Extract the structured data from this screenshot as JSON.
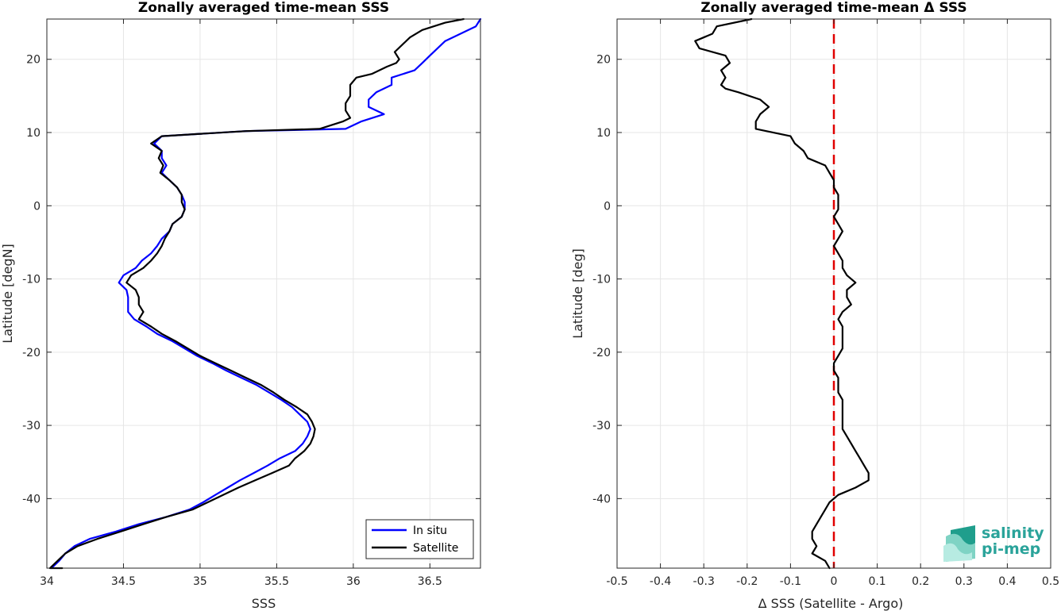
{
  "chart_data": [
    {
      "type": "line",
      "title": "Zonally averaged time-mean SSS",
      "xlabel": "SSS",
      "ylabel": "Latitude [degN]",
      "xlim": [
        34.0,
        36.83
      ],
      "ylim": [
        -49.5,
        25.5
      ],
      "xticks": [
        34,
        34.5,
        35,
        35.5,
        36,
        36.5
      ],
      "xtick_labels": [
        "34",
        "34.5",
        "35",
        "35.5",
        "36",
        "36.5"
      ],
      "yticks": [
        -40,
        -30,
        -20,
        -10,
        0,
        10,
        20
      ],
      "ytick_labels": [
        "-40",
        "-30",
        "-20",
        "-10",
        "0",
        "10",
        "20"
      ],
      "grid": true,
      "legend_position": "bottom-right",
      "series": [
        {
          "name": "In situ",
          "color": "#0000ff",
          "points": [
            [
              36.83,
              25.5
            ],
            [
              36.8,
              24.5
            ],
            [
              36.6,
              22.5
            ],
            [
              36.5,
              20.5
            ],
            [
              36.45,
              19.5
            ],
            [
              36.4,
              18.5
            ],
            [
              36.25,
              17.5
            ],
            [
              36.25,
              16.5
            ],
            [
              36.15,
              15.5
            ],
            [
              36.1,
              14.5
            ],
            [
              36.1,
              13.5
            ],
            [
              36.2,
              12.5
            ],
            [
              36.05,
              11.5
            ],
            [
              35.95,
              10.5
            ],
            [
              35.3,
              10.2
            ],
            [
              34.75,
              9.5
            ],
            [
              34.7,
              8.5
            ],
            [
              34.75,
              7.5
            ],
            [
              34.75,
              6.5
            ],
            [
              34.78,
              5.5
            ],
            [
              34.75,
              4.5
            ],
            [
              34.8,
              3.5
            ],
            [
              34.85,
              2.5
            ],
            [
              34.88,
              1.5
            ],
            [
              34.9,
              0.5
            ],
            [
              34.9,
              -0.5
            ],
            [
              34.88,
              -1.5
            ],
            [
              34.82,
              -2.5
            ],
            [
              34.8,
              -3.5
            ],
            [
              34.75,
              -4.5
            ],
            [
              34.72,
              -5.5
            ],
            [
              34.68,
              -6.5
            ],
            [
              34.62,
              -7.5
            ],
            [
              34.58,
              -8.5
            ],
            [
              34.5,
              -9.5
            ],
            [
              34.47,
              -10.5
            ],
            [
              34.52,
              -11.5
            ],
            [
              34.53,
              -12.5
            ],
            [
              34.53,
              -13.5
            ],
            [
              34.53,
              -14.5
            ],
            [
              34.57,
              -15.5
            ],
            [
              34.65,
              -16.5
            ],
            [
              34.72,
              -17.5
            ],
            [
              34.82,
              -18.5
            ],
            [
              34.9,
              -19.5
            ],
            [
              34.98,
              -20.5
            ],
            [
              35.08,
              -21.5
            ],
            [
              35.17,
              -22.5
            ],
            [
              35.27,
              -23.5
            ],
            [
              35.37,
              -24.5
            ],
            [
              35.45,
              -25.5
            ],
            [
              35.53,
              -26.5
            ],
            [
              35.6,
              -27.5
            ],
            [
              35.65,
              -28.5
            ],
            [
              35.7,
              -29.5
            ],
            [
              35.72,
              -30.5
            ],
            [
              35.7,
              -31.5
            ],
            [
              35.67,
              -32.5
            ],
            [
              35.62,
              -33.5
            ],
            [
              35.52,
              -34.5
            ],
            [
              35.44,
              -35.5
            ],
            [
              35.35,
              -36.5
            ],
            [
              35.26,
              -37.5
            ],
            [
              35.18,
              -38.5
            ],
            [
              35.1,
              -39.5
            ],
            [
              35.02,
              -40.5
            ],
            [
              34.93,
              -41.5
            ],
            [
              34.78,
              -42.5
            ],
            [
              34.6,
              -43.5
            ],
            [
              34.45,
              -44.5
            ],
            [
              34.28,
              -45.5
            ],
            [
              34.18,
              -46.5
            ],
            [
              34.12,
              -47.5
            ],
            [
              34.08,
              -48.5
            ],
            [
              34.03,
              -49.5
            ]
          ]
        },
        {
          "name": "Satellite",
          "color": "#000000",
          "points": [
            [
              36.72,
              25.5
            ],
            [
              36.6,
              25.0
            ],
            [
              36.45,
              24.0
            ],
            [
              36.37,
              23.0
            ],
            [
              36.32,
              22.0
            ],
            [
              36.27,
              21.0
            ],
            [
              36.3,
              20.0
            ],
            [
              36.28,
              19.5
            ],
            [
              36.22,
              19.0
            ],
            [
              36.12,
              18.0
            ],
            [
              36.02,
              17.5
            ],
            [
              35.98,
              16.5
            ],
            [
              35.98,
              15.0
            ],
            [
              35.95,
              14.0
            ],
            [
              35.95,
              13.0
            ],
            [
              35.98,
              12.0
            ],
            [
              35.93,
              11.5
            ],
            [
              35.78,
              10.5
            ],
            [
              35.3,
              10.2
            ],
            [
              34.75,
              9.5
            ],
            [
              34.68,
              8.5
            ],
            [
              34.75,
              7.5
            ],
            [
              34.73,
              6.5
            ],
            [
              34.76,
              5.5
            ],
            [
              34.74,
              4.5
            ],
            [
              34.8,
              3.5
            ],
            [
              34.85,
              2.5
            ],
            [
              34.88,
              1.5
            ],
            [
              34.88,
              0.5
            ],
            [
              34.9,
              -0.5
            ],
            [
              34.88,
              -1.5
            ],
            [
              34.82,
              -2.5
            ],
            [
              34.8,
              -3.5
            ],
            [
              34.77,
              -4.5
            ],
            [
              34.75,
              -5.5
            ],
            [
              34.72,
              -6.5
            ],
            [
              34.68,
              -7.5
            ],
            [
              34.63,
              -8.5
            ],
            [
              34.55,
              -9.5
            ],
            [
              34.52,
              -10.5
            ],
            [
              34.58,
              -11.5
            ],
            [
              34.6,
              -12.5
            ],
            [
              34.6,
              -13.5
            ],
            [
              34.63,
              -14.5
            ],
            [
              34.6,
              -15.5
            ],
            [
              34.68,
              -16.5
            ],
            [
              34.75,
              -17.5
            ],
            [
              34.84,
              -18.5
            ],
            [
              34.92,
              -19.5
            ],
            [
              35.0,
              -20.5
            ],
            [
              35.1,
              -21.5
            ],
            [
              35.2,
              -22.5
            ],
            [
              35.3,
              -23.5
            ],
            [
              35.4,
              -24.5
            ],
            [
              35.48,
              -25.5
            ],
            [
              35.55,
              -26.5
            ],
            [
              35.63,
              -27.5
            ],
            [
              35.7,
              -28.5
            ],
            [
              35.73,
              -29.5
            ],
            [
              35.75,
              -30.5
            ],
            [
              35.74,
              -31.5
            ],
            [
              35.72,
              -32.5
            ],
            [
              35.68,
              -33.5
            ],
            [
              35.62,
              -34.5
            ],
            [
              35.58,
              -35.5
            ],
            [
              35.47,
              -36.5
            ],
            [
              35.36,
              -37.5
            ],
            [
              35.25,
              -38.5
            ],
            [
              35.15,
              -39.5
            ],
            [
              35.05,
              -40.5
            ],
            [
              34.95,
              -41.5
            ],
            [
              34.78,
              -42.5
            ],
            [
              34.63,
              -43.5
            ],
            [
              34.48,
              -44.5
            ],
            [
              34.33,
              -45.5
            ],
            [
              34.2,
              -46.5
            ],
            [
              34.12,
              -47.5
            ],
            [
              34.07,
              -48.5
            ],
            [
              34.02,
              -49.5
            ],
            [
              34.1,
              -49.5
            ]
          ]
        }
      ]
    },
    {
      "type": "line",
      "title": "Zonally averaged time-mean Δ SSS",
      "xlabel": "Δ SSS (Satellite - Argo)",
      "ylabel": "Latitude [deg]",
      "xlim": [
        -0.5,
        0.5
      ],
      "ylim": [
        -49.5,
        25.5
      ],
      "xticks": [
        -0.5,
        -0.4,
        -0.3,
        -0.2,
        -0.1,
        0,
        0.1,
        0.2,
        0.3,
        0.4,
        0.5
      ],
      "xtick_labels": [
        "-0.5",
        "-0.4",
        "-0.3",
        "-0.2",
        "-0.1",
        "0",
        "0.1",
        "0.2",
        "0.3",
        "0.4",
        "0.5"
      ],
      "yticks": [
        -40,
        -30,
        -20,
        -10,
        0,
        10,
        20
      ],
      "ytick_labels": [
        "-40",
        "-30",
        "-20",
        "-10",
        "0",
        "10",
        "20"
      ],
      "grid": true,
      "reference_line": {
        "x": 0,
        "color": "#e00000",
        "style": "dashed"
      },
      "series": [
        {
          "color": "#000000",
          "points": [
            [
              -0.19,
              25.5
            ],
            [
              -0.27,
              24.5
            ],
            [
              -0.28,
              23.5
            ],
            [
              -0.32,
              22.5
            ],
            [
              -0.31,
              21.5
            ],
            [
              -0.25,
              20.5
            ],
            [
              -0.24,
              19.5
            ],
            [
              -0.26,
              18.5
            ],
            [
              -0.25,
              17.5
            ],
            [
              -0.26,
              16.5
            ],
            [
              -0.25,
              16.0
            ],
            [
              -0.22,
              15.5
            ],
            [
              -0.17,
              14.5
            ],
            [
              -0.15,
              13.5
            ],
            [
              -0.17,
              12.5
            ],
            [
              -0.18,
              11.5
            ],
            [
              -0.18,
              10.5
            ],
            [
              -0.1,
              9.5
            ],
            [
              -0.09,
              8.5
            ],
            [
              -0.07,
              7.5
            ],
            [
              -0.06,
              6.5
            ],
            [
              -0.02,
              5.5
            ],
            [
              -0.01,
              4.5
            ],
            [
              0.0,
              3.5
            ],
            [
              0.0,
              2.5
            ],
            [
              0.01,
              1.5
            ],
            [
              0.01,
              0.5
            ],
            [
              0.01,
              -0.5
            ],
            [
              0.0,
              -1.5
            ],
            [
              0.01,
              -2.5
            ],
            [
              0.02,
              -3.5
            ],
            [
              0.01,
              -4.5
            ],
            [
              0.0,
              -5.5
            ],
            [
              0.01,
              -6.5
            ],
            [
              0.02,
              -7.5
            ],
            [
              0.02,
              -8.5
            ],
            [
              0.03,
              -9.5
            ],
            [
              0.05,
              -10.5
            ],
            [
              0.03,
              -11.5
            ],
            [
              0.03,
              -12.5
            ],
            [
              0.04,
              -13.5
            ],
            [
              0.02,
              -14.5
            ],
            [
              0.01,
              -15.5
            ],
            [
              0.02,
              -16.5
            ],
            [
              0.02,
              -17.5
            ],
            [
              0.02,
              -18.5
            ],
            [
              0.02,
              -19.5
            ],
            [
              0.01,
              -20.5
            ],
            [
              0.0,
              -21.5
            ],
            [
              0.0,
              -22.5
            ],
            [
              0.01,
              -23.5
            ],
            [
              0.01,
              -24.5
            ],
            [
              0.01,
              -25.5
            ],
            [
              0.02,
              -26.5
            ],
            [
              0.02,
              -27.5
            ],
            [
              0.02,
              -28.5
            ],
            [
              0.02,
              -29.5
            ],
            [
              0.02,
              -30.5
            ],
            [
              0.03,
              -31.5
            ],
            [
              0.04,
              -32.5
            ],
            [
              0.05,
              -33.5
            ],
            [
              0.06,
              -34.5
            ],
            [
              0.07,
              -35.5
            ],
            [
              0.08,
              -36.5
            ],
            [
              0.08,
              -37.5
            ],
            [
              0.05,
              -38.5
            ],
            [
              0.01,
              -39.5
            ],
            [
              -0.01,
              -40.5
            ],
            [
              -0.02,
              -41.5
            ],
            [
              -0.03,
              -42.5
            ],
            [
              -0.04,
              -43.5
            ],
            [
              -0.05,
              -44.5
            ],
            [
              -0.05,
              -45.5
            ],
            [
              -0.04,
              -46.5
            ],
            [
              -0.05,
              -47.5
            ],
            [
              -0.02,
              -48.5
            ],
            [
              -0.01,
              -49.5
            ]
          ]
        }
      ]
    }
  ],
  "logo": {
    "text_line1": "salinity",
    "text_line2": "pi-mep",
    "color": "#2aa39a",
    "icon": "salinity-waves-logo"
  }
}
